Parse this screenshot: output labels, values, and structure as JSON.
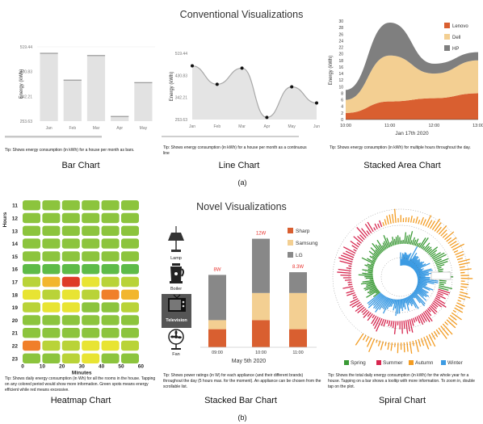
{
  "section_a": {
    "title": "Conventional Visualizations",
    "sublabel": "(a)"
  },
  "section_b": {
    "title": "Novel Visualizations",
    "sublabel": "(b)"
  },
  "bar_chart": {
    "caption": "Bar Chart",
    "tip": "Tip: Shows energy consumption (in kWh) for a house per month as bars."
  },
  "line_chart": {
    "caption": "Line Chart",
    "tip": "Tip: Shows energy consumption (in kWh) for a house per month as a continuous line"
  },
  "area_chart": {
    "caption": "Stacked Area Chart",
    "tip": "Tip: Shows energy consumption (in kWh) for multiple hours throughout the day."
  },
  "heatmap_chart": {
    "caption": "Heatmap Chart",
    "tip": "Tip: Shows daily energy consumption (in Wh) for all the rooms in the house. Tapping on any colored period would show more information. Green spots means energy efficient while red means excessive."
  },
  "stacked_chart": {
    "caption": "Stacked Bar Chart",
    "tip": "Tip: Shows power ratings (in W) for each appliance (and their different brands) throughout the day (5 hours max. for the moment). An appliance can be chosen from the scrollable list.",
    "appliances": [
      {
        "name": "Lamp",
        "icon": "lamp-icon"
      },
      {
        "name": "Boiler",
        "icon": "boiler-icon"
      },
      {
        "name": "Television",
        "icon": "television-icon"
      },
      {
        "name": "Fan",
        "icon": "fan-icon"
      }
    ],
    "selected": "Television"
  },
  "spiral_chart": {
    "caption": "Spiral Chart",
    "tip": "Tip: Shows the total daily energy consumption (in kWh) for the whole year for a house. Tapping on a bar shows a tooltip with more information. To zoom in, double tap on the plot."
  },
  "colors": {
    "bar": "#e2e2e2",
    "line_fill": "#e4e4e4",
    "lenovo": "#d95f30",
    "dell": "#f3cf92",
    "hp": "#7f7f7f",
    "sharp": "#d95f30",
    "samsung": "#f3cf92",
    "lg": "#888888",
    "spring": "#3a9a35",
    "summer": "#d7264f",
    "autumn": "#f39c22",
    "winter": "#3c9be3",
    "value_label": "#e8312c"
  },
  "chart_data": [
    {
      "type": "bar",
      "id": "bar",
      "categories": [
        "Jan",
        "Feb",
        "Mar",
        "Apr",
        "May"
      ],
      "values": [
        498,
        402,
        490,
        272,
        393
      ],
      "ylabel": "Energy (kWh)",
      "yticks": [
        "253.63",
        "342.21",
        "430.83",
        "519.44"
      ],
      "ylim": [
        253.63,
        519.44
      ]
    },
    {
      "type": "line",
      "id": "line",
      "categories": [
        "Jan",
        "Feb",
        "Mar",
        "Apr",
        "May",
        "Jun"
      ],
      "values": [
        469,
        395,
        460,
        262,
        385,
        320
      ],
      "ylabel": "Energy (kWh)",
      "yticks": [
        "253.63",
        "342.21",
        "430.83",
        "519.44"
      ],
      "ylim": [
        253.63,
        519.44
      ]
    },
    {
      "type": "area",
      "id": "area",
      "x": [
        "10:00",
        "11:00",
        "12:00",
        "13:00"
      ],
      "xlabel": "Jan 17th 2020",
      "ylabel": "Energy (kWh)",
      "ylim": [
        0,
        30
      ],
      "yticks": [
        0,
        2,
        4,
        6,
        8,
        10,
        12,
        14,
        16,
        18,
        20,
        22,
        24,
        26,
        28,
        30
      ],
      "legend_position": "top-right",
      "series": [
        {
          "name": "Lenovo",
          "values": [
            2,
            5.5,
            6.5,
            8
          ]
        },
        {
          "name": "Dell",
          "values": [
            4,
            14,
            7.5,
            10
          ]
        },
        {
          "name": "HP",
          "values": [
            3,
            10,
            3,
            2.5
          ]
        }
      ]
    },
    {
      "type": "heatmap",
      "id": "heatmap",
      "ylabel": "Hours",
      "xlabel": "Minutes",
      "rows": [
        "11",
        "12",
        "13",
        "14",
        "15",
        "16",
        "17",
        "18",
        "19",
        "20",
        "21",
        "22",
        "23"
      ],
      "xticks": [
        "0",
        "10",
        "20",
        "30",
        "40",
        "50",
        "60"
      ],
      "palette": [
        "#2e9e4f",
        "#5ebb48",
        "#8cc43d",
        "#b9d338",
        "#e8e433",
        "#f2b62e",
        "#f07f2a",
        "#de3b27"
      ],
      "values": [
        [
          2,
          2,
          2,
          2,
          2,
          2
        ],
        [
          2,
          2,
          2,
          2,
          2,
          2
        ],
        [
          2,
          2,
          2,
          2,
          2,
          2
        ],
        [
          2,
          2,
          2,
          2,
          2,
          2
        ],
        [
          2,
          2,
          2,
          2,
          2,
          2
        ],
        [
          1,
          1,
          1,
          1,
          1,
          1
        ],
        [
          3,
          5,
          7,
          4,
          3,
          3
        ],
        [
          4,
          3,
          4,
          3,
          6,
          5
        ],
        [
          3,
          4,
          4,
          2,
          2,
          3
        ],
        [
          2,
          2,
          2,
          2,
          2,
          2
        ],
        [
          2,
          2,
          2,
          2,
          2,
          2
        ],
        [
          6,
          3,
          3,
          4,
          4,
          3
        ],
        [
          2,
          2,
          3,
          4,
          2,
          2
        ]
      ]
    },
    {
      "type": "bar",
      "stacked": true,
      "id": "stacked",
      "categories": [
        "09:00",
        "10:00",
        "11:00"
      ],
      "xlabel": "May 5th 2020",
      "totals": [
        "8W",
        "12W",
        "8.3W"
      ],
      "series": [
        {
          "name": "Sharp",
          "values": [
            2,
            3,
            2
          ]
        },
        {
          "name": "Samsung",
          "values": [
            1,
            3,
            4
          ]
        },
        {
          "name": "LG",
          "values": [
            5,
            6,
            2.3
          ]
        }
      ]
    },
    {
      "type": "bar",
      "polar": true,
      "id": "spiral",
      "legend": [
        "Spring",
        "Summer",
        "Autumn",
        "Winter"
      ],
      "legend_position": "bottom"
    }
  ]
}
